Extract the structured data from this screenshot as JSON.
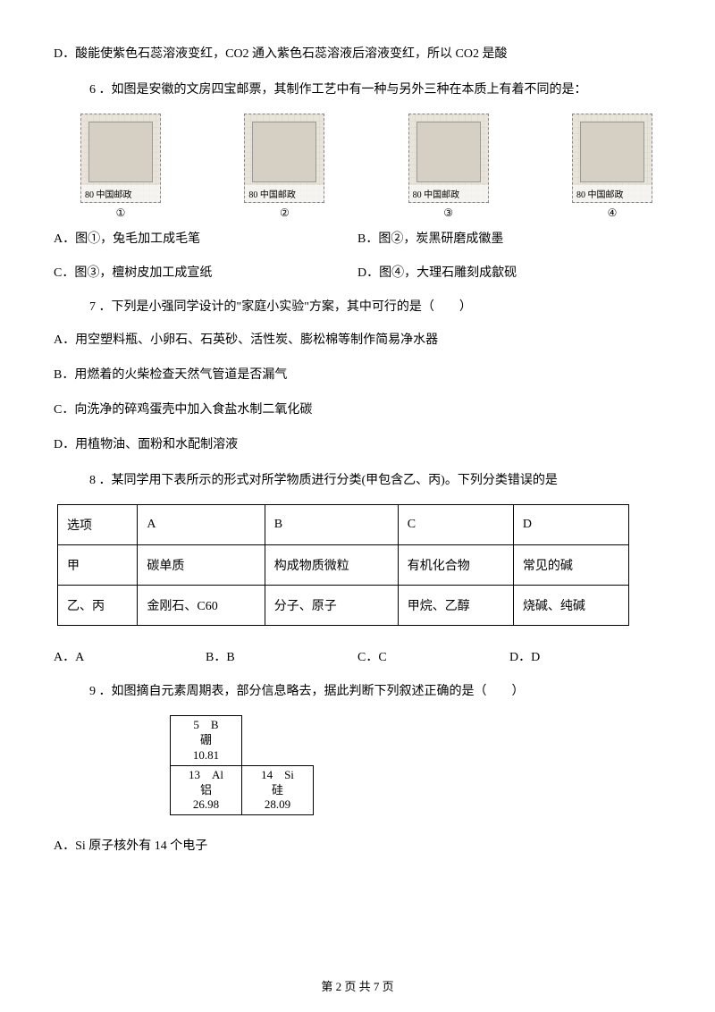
{
  "q5_optD": "D．酸能使紫色石蕊溶液变红，CO2 通入紫色石蕊溶液后溶液变红，所以 CO2 是酸",
  "q6": {
    "stem": "6 ．如图是安徽的文房四宝邮票，其制作工艺中有一种与另外三种在本质上有着不同的是：",
    "stamps": [
      "80 中国邮政",
      "80 中国邮政",
      "80 中国邮政",
      "80 中国邮政"
    ],
    "nums": [
      "①",
      "②",
      "③",
      "④"
    ],
    "A": "A．图①，兔毛加工成毛笔",
    "B": "B．图②，炭黑研磨成徽墨",
    "C": "C．图③，檀树皮加工成宣纸",
    "D": "D．图④，大理石雕刻成歙砚"
  },
  "q7": {
    "stem": "7 ．下列是小强同学设计的\"家庭小实验\"方案，其中可行的是（　　）",
    "A": "A．用空塑料瓶、小卵石、石英砂、活性炭、膨松棉等制作简易净水器",
    "B": "B．用燃着的火柴检查天然气管道是否漏气",
    "C": "C．向洗净的碎鸡蛋壳中加入食盐水制二氧化碳",
    "D": "D．用植物油、面粉和水配制溶液"
  },
  "q8": {
    "stem": "8 ．某同学用下表所示的形式对所学物质进行分类(甲包含乙、丙)。下列分类错误的是",
    "table": {
      "headers": [
        "选项",
        "A",
        "B",
        "C",
        "D"
      ],
      "rows": [
        [
          "甲",
          "碳单质",
          "构成物质微粒",
          "有机化合物",
          "常见的碱"
        ],
        [
          "乙、丙",
          "金刚石、C60",
          "分子、原子",
          "甲烷、乙醇",
          "烧碱、纯碱"
        ]
      ]
    },
    "opts": [
      "A．A",
      "B．B",
      "C．C",
      "D．D"
    ]
  },
  "q9": {
    "stem": "9 ．如图摘自元素周期表，部分信息略去，据此判断下列叙述正确的是（　　）",
    "cells": {
      "B": {
        "num": "5",
        "sym": "B",
        "name": "硼",
        "mass": "10.81"
      },
      "Al": {
        "num": "13",
        "sym": "Al",
        "name": "铝",
        "mass": "26.98"
      },
      "Si": {
        "num": "14",
        "sym": "Si",
        "name": "硅",
        "mass": "28.09"
      }
    },
    "A": "A．Si 原子核外有 14 个电子"
  },
  "footer": "第 2 页 共 7 页"
}
